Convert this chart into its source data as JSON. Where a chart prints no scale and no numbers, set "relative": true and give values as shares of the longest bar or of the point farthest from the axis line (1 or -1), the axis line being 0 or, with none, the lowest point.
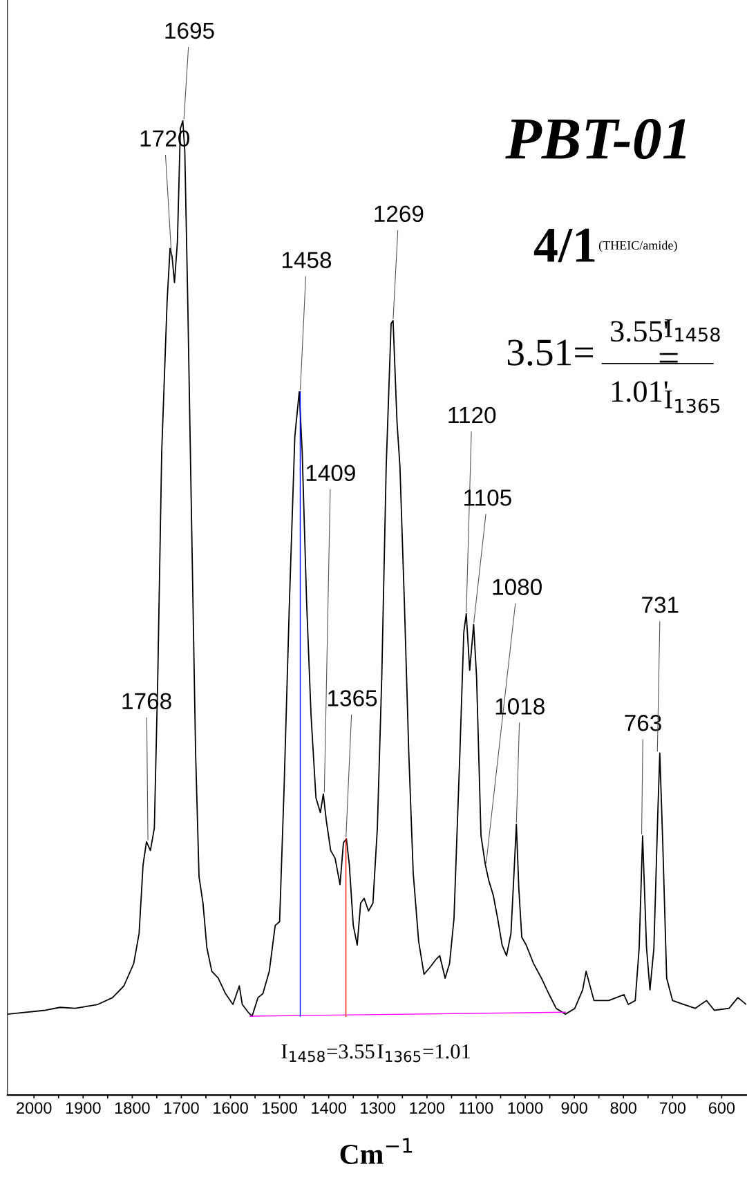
{
  "chart_data": {
    "type": "line",
    "title": "PBT-01",
    "xlabel": "Cm$^{−1}$",
    "relative": true,
    "xlim": [
      2054,
      550
    ],
    "xticks": [
      2000,
      {
        "value": 1950,
        "label": null
      },
      1900,
      {
        "value": 1850,
        "label": null
      },
      1800,
      {
        "value": 1750,
        "label": null
      },
      1700,
      {
        "value": 1650,
        "label": null
      },
      1600,
      {
        "value": 1550,
        "label": null
      },
      1500,
      {
        "value": 1450,
        "label": null
      },
      1400,
      {
        "value": 1350,
        "label": null
      },
      1300,
      {
        "value": 1250,
        "label": null
      },
      1200,
      {
        "value": 1150,
        "label": null
      },
      1100,
      {
        "value": 1050,
        "label": null
      },
      1000,
      {
        "value": 950,
        "label": null
      },
      900,
      {
        "value": 850,
        "label": null
      },
      800,
      {
        "value": 750,
        "label": null
      },
      700,
      {
        "value": 650,
        "label": null
      },
      600
    ],
    "tick_labels": "x",
    "grid": false,
    "legend": false,
    "marker": "none",
    "series": [
      {
        "color": "#000000",
        "x": [
          2054,
          1977,
          1947,
          1916,
          1870,
          1840,
          1817,
          1797,
          1786,
          1778,
          1771,
          1763,
          1755,
          1748,
          1740,
          1729,
          1723,
          1719,
          1714,
          1708,
          1702,
          1697,
          1693,
          1687,
          1679,
          1671,
          1664,
          1656,
          1648,
          1638,
          1625,
          1610,
          1595,
          1582,
          1576,
          1564,
          1556,
          1544,
          1534,
          1521,
          1509,
          1500,
          1491,
          1480,
          1469,
          1460,
          1454,
          1445,
          1436,
          1426,
          1417,
          1411,
          1405,
          1396,
          1387,
          1377,
          1370,
          1364,
          1358,
          1350,
          1342,
          1335,
          1328,
          1319,
          1310,
          1301,
          1292,
          1283,
          1273,
          1269,
          1261,
          1255,
          1246,
          1237,
          1228,
          1217,
          1206,
          1194,
          1182,
          1174,
          1163,
          1154,
          1145,
          1133,
          1125,
          1120,
          1113,
          1105,
          1099,
          1090,
          1081,
          1074,
          1065,
          1056,
          1047,
          1038,
          1029,
          1022,
          1018,
          1013,
          1007,
          998,
          983,
          967,
          952,
          937,
          918,
          899,
          883,
          876,
          868,
          860,
          830,
          799,
          790,
          776,
          768,
          761,
          753,
          746,
          738,
          730,
          726,
          720,
          712,
          700,
          677,
          654,
          631,
          615,
          585,
          567,
          550
        ],
        "values": [
          0.083,
          0.087,
          0.09,
          0.089,
          0.093,
          0.1,
          0.112,
          0.135,
          0.166,
          0.236,
          0.26,
          0.251,
          0.274,
          0.429,
          0.66,
          0.815,
          0.869,
          0.861,
          0.834,
          0.876,
          0.992,
          1.0,
          0.969,
          0.815,
          0.583,
          0.351,
          0.224,
          0.197,
          0.151,
          0.127,
          0.12,
          0.104,
          0.093,
          0.112,
          0.093,
          0.085,
          0.081,
          0.1,
          0.104,
          0.127,
          0.174,
          0.178,
          0.313,
          0.506,
          0.676,
          0.722,
          0.66,
          0.506,
          0.39,
          0.305,
          0.29,
          0.309,
          0.282,
          0.251,
          0.243,
          0.216,
          0.259,
          0.263,
          0.236,
          0.174,
          0.154,
          0.197,
          0.202,
          0.189,
          0.197,
          0.274,
          0.429,
          0.645,
          0.792,
          0.795,
          0.691,
          0.645,
          0.506,
          0.351,
          0.228,
          0.158,
          0.124,
          0.131,
          0.139,
          0.143,
          0.12,
          0.135,
          0.181,
          0.351,
          0.475,
          0.494,
          0.436,
          0.483,
          0.429,
          0.266,
          0.236,
          0.22,
          0.205,
          0.181,
          0.154,
          0.143,
          0.166,
          0.236,
          0.278,
          0.212,
          0.162,
          0.154,
          0.135,
          0.12,
          0.104,
          0.089,
          0.083,
          0.089,
          0.108,
          0.127,
          0.112,
          0.097,
          0.097,
          0.103,
          0.093,
          0.097,
          0.151,
          0.266,
          0.151,
          0.108,
          0.151,
          0.29,
          0.351,
          0.259,
          0.12,
          0.097,
          0.093,
          0.089,
          0.097,
          0.087,
          0.089,
          0.1,
          0.093
        ]
      },
      {
        "color": "#ff00ff",
        "x": [
          1560,
          918
        ],
        "values": [
          0.081,
          0.085
        ]
      },
      {
        "color": "#0000ff",
        "x": [
          1458,
          1458
        ],
        "values": [
          0.081,
          0.722
        ]
      },
      {
        "color": "#ff0000",
        "x": [
          1365,
          1365
        ],
        "values": [
          0.081,
          0.263
        ]
      }
    ],
    "annotations": [
      {
        "text": "1768",
        "x": 1768,
        "y": 0.26
      },
      {
        "text": "1720",
        "x": 1720,
        "y": 0.861
      },
      {
        "text": "1695",
        "x": 1695,
        "y": 1.0
      },
      {
        "text": "1458",
        "x": 1458,
        "y": 0.722
      },
      {
        "text": "1409",
        "x": 1409,
        "y": 0.309
      },
      {
        "text": "1365",
        "x": 1365,
        "y": 0.263
      },
      {
        "text": "1269",
        "x": 1269,
        "y": 0.795
      },
      {
        "text": "1120",
        "x": 1120,
        "y": 0.494
      },
      {
        "text": "1105",
        "x": 1105,
        "y": 0.483
      },
      {
        "text": "1080",
        "x": 1080,
        "y": 0.236
      },
      {
        "text": "1018",
        "x": 1018,
        "y": 0.278
      },
      {
        "text": "763",
        "x": 763,
        "y": 0.266
      },
      {
        "text": "731",
        "x": 731,
        "y": 0.351
      },
      "4/1",
      "(THEIC/amide)",
      "3.51=",
      "3.55'",
      "1.01'",
      "=",
      "I$_{1458}$",
      "I$_{1365}$",
      "I$_{1458}$=3.55",
      "I$_{1365}$=1.01"
    ]
  }
}
